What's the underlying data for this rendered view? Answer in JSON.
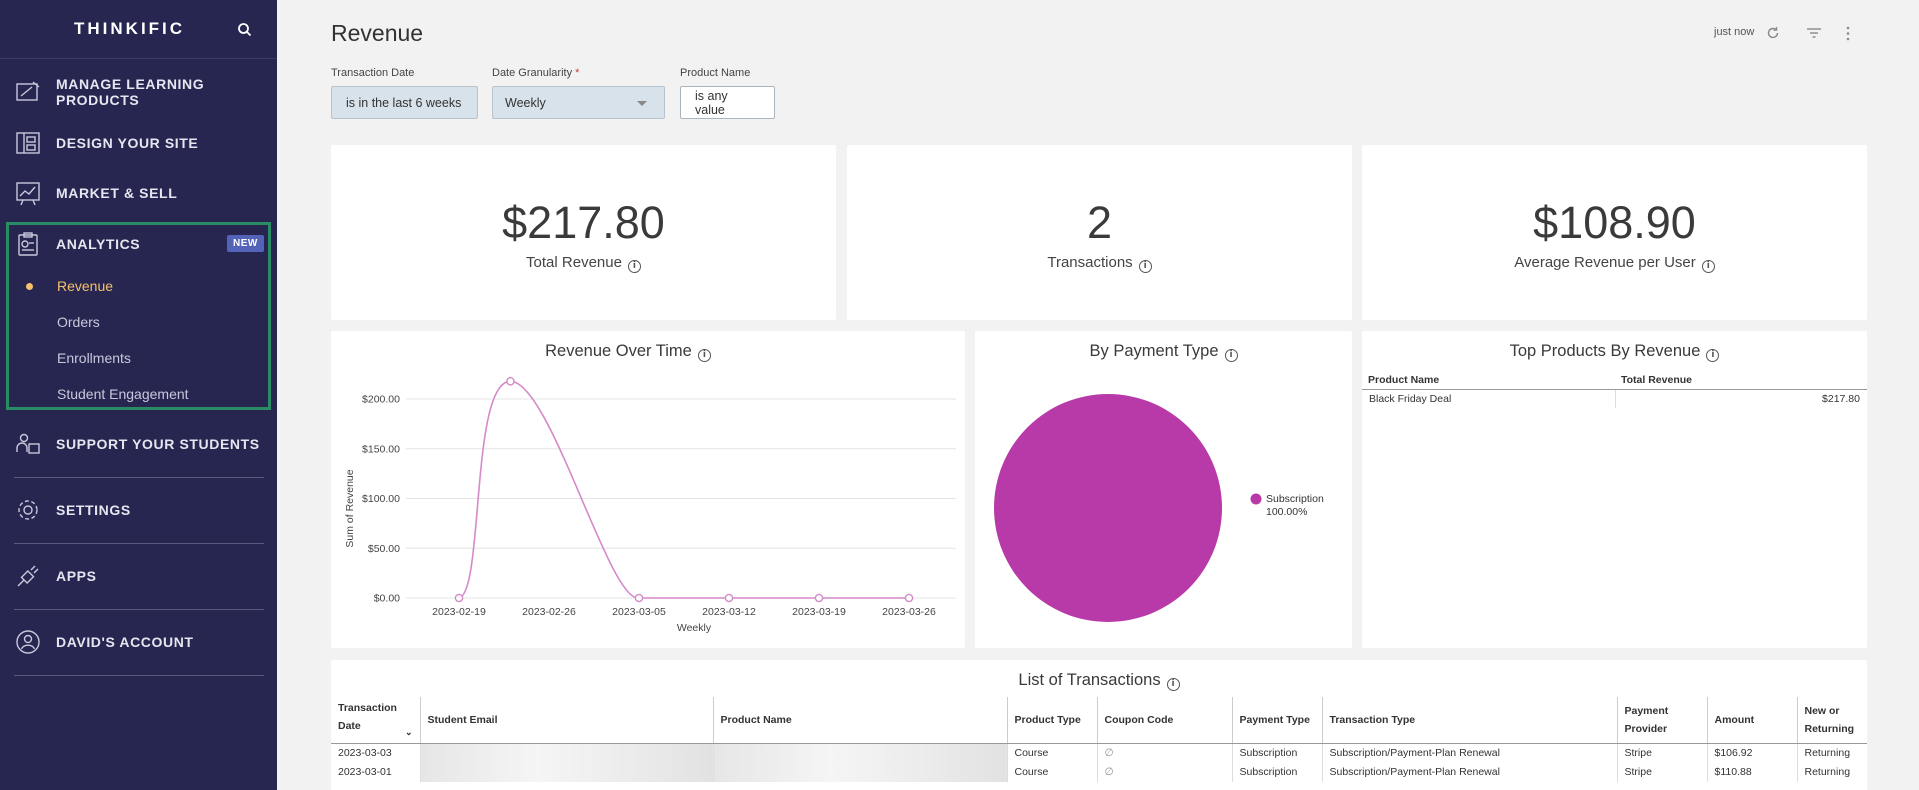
{
  "sidebar": {
    "logo": "THINKIFIC",
    "nav": [
      {
        "label": "MANAGE LEARNING PRODUCTS",
        "icon": "courses-icon"
      },
      {
        "label": "DESIGN YOUR SITE",
        "icon": "layout-icon"
      },
      {
        "label": "MARKET & SELL",
        "icon": "chart-icon"
      },
      {
        "label": "ANALYTICS",
        "icon": "analytics-icon"
      },
      {
        "label": "SUPPORT YOUR STUDENTS",
        "icon": "students-icon"
      },
      {
        "label": "SETTINGS",
        "icon": "gear-icon"
      },
      {
        "label": "APPS",
        "icon": "plug-icon"
      },
      {
        "label": "DAVID'S ACCOUNT",
        "icon": "user-icon"
      }
    ],
    "new_badge": "NEW",
    "analytics_sub": [
      "Revenue",
      "Orders",
      "Enrollments",
      "Student Engagement"
    ]
  },
  "header": {
    "title": "Revenue",
    "updated": "just now"
  },
  "filters": {
    "transaction_date": {
      "label": "Transaction Date",
      "value": "is in the last 6 weeks"
    },
    "granularity": {
      "label": "Date Granularity",
      "required": "*",
      "value": "Weekly"
    },
    "product_name": {
      "label": "Product Name",
      "value": "is any value"
    }
  },
  "kpis": [
    {
      "value": "$217.80",
      "label": "Total Revenue"
    },
    {
      "value": "2",
      "label": "Transactions"
    },
    {
      "value": "$108.90",
      "label": "Average Revenue per User"
    }
  ],
  "colors": {
    "sidebar": "#262650",
    "accent": "#f5c16c",
    "highlight": "#2a8c64",
    "line": "#d58ac8",
    "pie": "#b83aa8"
  },
  "chart_data": [
    {
      "type": "line",
      "title": "Revenue Over Time",
      "xlabel": "Weekly",
      "ylabel": "Sum of Revenue",
      "x": [
        "2023-02-19",
        "2023-02-26",
        "2023-03-05",
        "2023-03-12",
        "2023-03-19",
        "2023-03-26"
      ],
      "point_x": [
        "2023-02-19",
        "2023-02-23",
        "2023-03-05",
        "2023-03-12",
        "2023-03-19",
        "2023-03-26"
      ],
      "values": [
        0,
        217.8,
        0,
        0,
        0,
        0
      ],
      "yticks": [
        "$200.00",
        "$150.00",
        "$100.00",
        "$50.00",
        "$0.00"
      ],
      "ylim": [
        0,
        200
      ],
      "grid": true
    },
    {
      "type": "pie",
      "title": "By Payment Type",
      "slices": [
        {
          "label": "Subscription",
          "value": 100,
          "display": "100.00%"
        }
      ],
      "legend": "right"
    }
  ],
  "top_products": {
    "title": "Top Products By Revenue",
    "headers": [
      "Product Name",
      "Total Revenue"
    ],
    "rows": [
      [
        "Black Friday Deal",
        "$217.80"
      ]
    ]
  },
  "transactions": {
    "title": "List of Transactions",
    "headers": [
      "Transaction Date",
      "Student Email",
      "Product Name",
      "Product Type",
      "Coupon Code",
      "Payment Type",
      "Transaction Type",
      "Payment Provider",
      "Amount",
      "New or Returning"
    ],
    "rows": [
      [
        "2023-03-03",
        "",
        "",
        "Course",
        "∅",
        "Subscription",
        "Subscription/Payment-Plan Renewal",
        "Stripe",
        "$106.92",
        "Returning"
      ],
      [
        "2023-03-01",
        "",
        "",
        "Course",
        "∅",
        "Subscription",
        "Subscription/Payment-Plan Renewal",
        "Stripe",
        "$110.88",
        "Returning"
      ]
    ]
  }
}
